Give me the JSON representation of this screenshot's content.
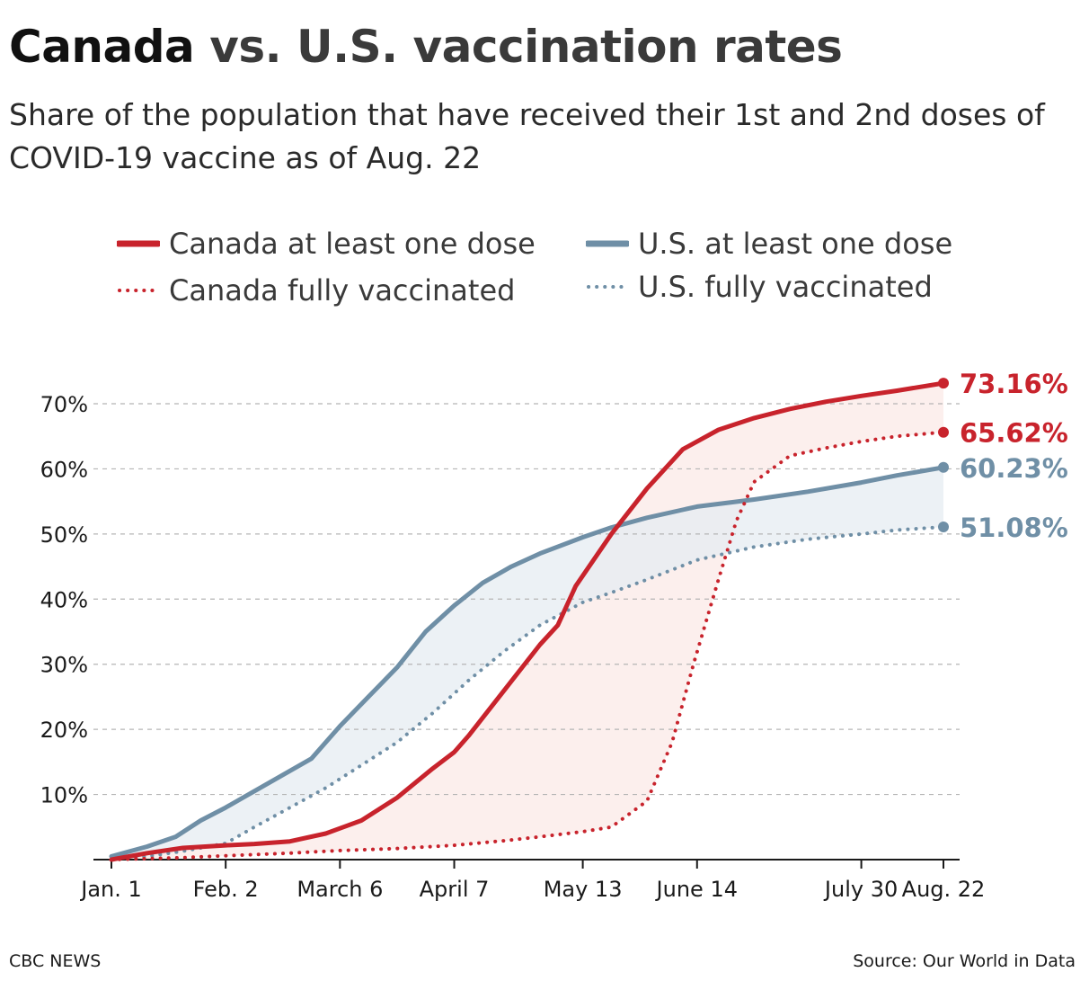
{
  "title": {
    "lead": "Canada",
    "rest": " vs. U.S. vaccination rates"
  },
  "subtitle": "Share of the population that have received their 1st and 2nd doses of COVID-19 vaccine as of Aug. 22",
  "footer": {
    "credit": "CBC NEWS",
    "source": "Source: Our World in Data"
  },
  "colors": {
    "canada": "#c8232c",
    "us": "#6f8fa6",
    "canada_fill": "#fbecea",
    "us_fill": "#e6ecf2",
    "grid": "#b5b5b5",
    "axis": "#1a1a1a"
  },
  "chart_data": {
    "type": "line",
    "title": "",
    "xlabel": "",
    "ylabel": "",
    "x_ticks": [
      "Jan. 1",
      "Feb. 2",
      "March 6",
      "April 7",
      "May 13",
      "June 14",
      "July 30",
      "Aug. 22"
    ],
    "x_tick_days": [
      0,
      32,
      64,
      96,
      132,
      164,
      210,
      233
    ],
    "y_ticks": [
      "10%",
      "20%",
      "30%",
      "40%",
      "50%",
      "60%",
      "70%"
    ],
    "ylim": [
      0,
      70
    ],
    "xlim_days": [
      0,
      233
    ],
    "grid": "horizontal dashed",
    "legend": "top",
    "series": [
      {
        "name": "Canada at least one dose",
        "style": "solid",
        "color": "#c8232c",
        "end_label": "73.16%",
        "points": [
          [
            0,
            0
          ],
          [
            10,
            1
          ],
          [
            20,
            1.8
          ],
          [
            32,
            2.2
          ],
          [
            40,
            2.4
          ],
          [
            50,
            2.8
          ],
          [
            60,
            4
          ],
          [
            70,
            6
          ],
          [
            80,
            9.5
          ],
          [
            90,
            14
          ],
          [
            96,
            16.5
          ],
          [
            100,
            19
          ],
          [
            110,
            26
          ],
          [
            120,
            33
          ],
          [
            125,
            36
          ],
          [
            130,
            42
          ],
          [
            140,
            50
          ],
          [
            150,
            57
          ],
          [
            160,
            63
          ],
          [
            170,
            66
          ],
          [
            180,
            67.8
          ],
          [
            190,
            69.2
          ],
          [
            200,
            70.3
          ],
          [
            210,
            71.2
          ],
          [
            220,
            72
          ],
          [
            233,
            73.16
          ]
        ]
      },
      {
        "name": "Canada fully vaccinated",
        "style": "dotted",
        "color": "#c8232c",
        "end_label": "65.62%",
        "points": [
          [
            0,
            0
          ],
          [
            20,
            0.3
          ],
          [
            32,
            0.6
          ],
          [
            50,
            1
          ],
          [
            64,
            1.4
          ],
          [
            80,
            1.7
          ],
          [
            96,
            2.2
          ],
          [
            110,
            2.9
          ],
          [
            120,
            3.5
          ],
          [
            132,
            4.3
          ],
          [
            140,
            5
          ],
          [
            150,
            9
          ],
          [
            157,
            18
          ],
          [
            163,
            30
          ],
          [
            170,
            43
          ],
          [
            175,
            52
          ],
          [
            180,
            58
          ],
          [
            190,
            62
          ],
          [
            200,
            63.2
          ],
          [
            210,
            64.2
          ],
          [
            220,
            65
          ],
          [
            233,
            65.62
          ]
        ]
      },
      {
        "name": "U.S. at least one dose",
        "style": "solid",
        "color": "#6f8fa6",
        "end_label": "60.23%",
        "points": [
          [
            0,
            0.5
          ],
          [
            10,
            2
          ],
          [
            18,
            3.5
          ],
          [
            25,
            6
          ],
          [
            32,
            8
          ],
          [
            40,
            10.5
          ],
          [
            48,
            13
          ],
          [
            56,
            15.5
          ],
          [
            64,
            20.5
          ],
          [
            72,
            25
          ],
          [
            80,
            29.5
          ],
          [
            88,
            35
          ],
          [
            96,
            39
          ],
          [
            104,
            42.5
          ],
          [
            112,
            45
          ],
          [
            120,
            47
          ],
          [
            132,
            49.5
          ],
          [
            140,
            51
          ],
          [
            150,
            52.5
          ],
          [
            164,
            54.2
          ],
          [
            180,
            55.3
          ],
          [
            195,
            56.5
          ],
          [
            210,
            57.9
          ],
          [
            220,
            59
          ],
          [
            233,
            60.23
          ]
        ]
      },
      {
        "name": "U.S. fully vaccinated",
        "style": "dotted",
        "color": "#6f8fa6",
        "end_label": "51.08%",
        "points": [
          [
            0,
            0
          ],
          [
            10,
            0.5
          ],
          [
            20,
            1.3
          ],
          [
            32,
            2.5
          ],
          [
            40,
            5
          ],
          [
            50,
            8
          ],
          [
            60,
            11
          ],
          [
            70,
            14.5
          ],
          [
            80,
            18
          ],
          [
            90,
            22.5
          ],
          [
            100,
            27.5
          ],
          [
            110,
            32
          ],
          [
            120,
            36
          ],
          [
            132,
            39.5
          ],
          [
            140,
            41
          ],
          [
            150,
            43
          ],
          [
            164,
            46
          ],
          [
            180,
            48
          ],
          [
            195,
            49.2
          ],
          [
            210,
            50
          ],
          [
            220,
            50.6
          ],
          [
            233,
            51.08
          ]
        ]
      }
    ]
  }
}
